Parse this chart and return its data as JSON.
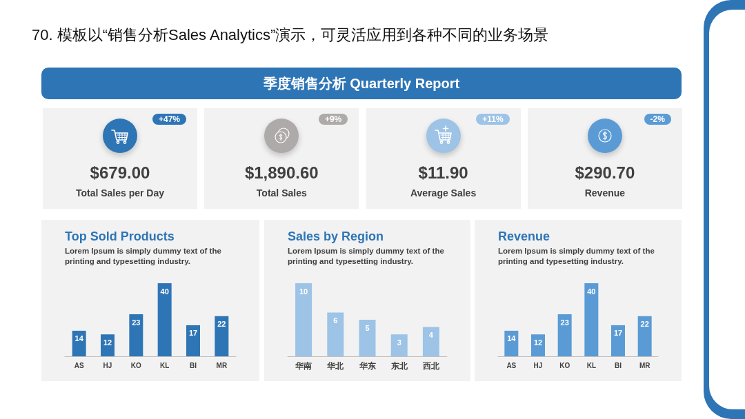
{
  "chart_data": [
    {
      "type": "other",
      "title": "70. 模板以“销售分析Sales Analytics”演示，可灵活应用到各种不同的业务场景",
      "subtitle": "季度销售分析 Quarterly Report",
      "colors": [
        "#2e75b6",
        "#aeaaaa",
        "#9dc3e6",
        "#5b9bd5"
      ],
      "annotations": [
        "+47%",
        "$679.00",
        "Total Sales per Day",
        "+9%",
        "$1,890.60",
        "Total Sales",
        "+11%",
        "$11.90",
        "Average Sales",
        "-2%",
        "$290.70",
        "Revenue"
      ]
    },
    {
      "type": "bar",
      "title": "Top Sold Products",
      "subtitle": "Lorem Ipsum is simply dummy text of the printing and typesetting industry.",
      "categories": [
        "AS",
        "HJ",
        "KO",
        "KL",
        "BI",
        "MR"
      ],
      "values": [
        14,
        12,
        23,
        40,
        17,
        22
      ],
      "color": "#2e75b6",
      "data_labels": true
    },
    {
      "type": "bar",
      "title": "Sales by Region",
      "subtitle": "Lorem Ipsum is simply dummy text of the printing and typesetting industry.",
      "categories": [
        "华南",
        "华北",
        "华东",
        "东北",
        "西北"
      ],
      "values": [
        10,
        6,
        5,
        3,
        4
      ],
      "color": "#9dc3e6",
      "data_labels": true
    },
    {
      "type": "bar",
      "title": "Revenue",
      "subtitle": "Lorem Ipsum is simply dummy text of the printing and typesetting industry.",
      "categories": [
        "AS",
        "HJ",
        "KO",
        "KL",
        "BI",
        "MR"
      ],
      "values": [
        14,
        12,
        23,
        40,
        17,
        22
      ],
      "color": "#5b9bd5",
      "data_labels": true
    }
  ]
}
